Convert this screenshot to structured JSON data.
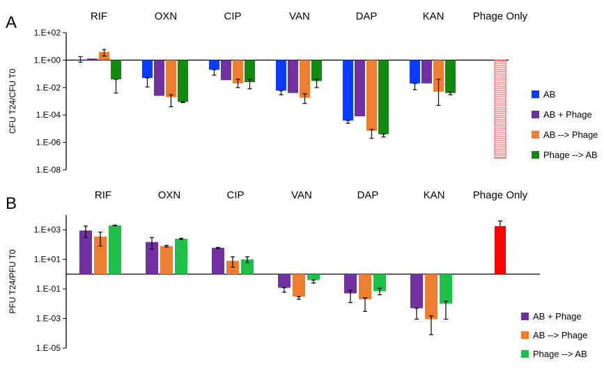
{
  "colors": {
    "AB": "#0a3cff",
    "AB + Phage": "#7030a0",
    "AB --> Phage": "#ed7d31",
    "Phage --> AB": "#0f8a0f",
    "Phage --> AB (B)": "#1fbf4a",
    "Phage Only A": "#ff4d4d",
    "Phage Only B": "#ff0000",
    "axis": "#000000",
    "errorbar": "#000000"
  },
  "chart_data": [
    {
      "panel": "A",
      "type": "bar",
      "log_scale": true,
      "ylabel": "CFU T24/CFU T0",
      "ylim": [
        1e-08,
        100
      ],
      "baseline": 1,
      "yticks": [
        {
          "value": 100,
          "label": "1.E+02"
        },
        {
          "value": 1,
          "label": "1.E+00"
        },
        {
          "value": 0.01,
          "label": "1.E-02"
        },
        {
          "value": 0.0001,
          "label": "1.E-04"
        },
        {
          "value": 1e-06,
          "label": "1.E-06"
        },
        {
          "value": 1e-08,
          "label": "1.E-08"
        }
      ],
      "categories": [
        "RIF",
        "OXN",
        "CIP",
        "VAN",
        "DAP",
        "KAN",
        "Phage Only"
      ],
      "legend": [
        "AB",
        "AB + Phage",
        "AB --> Phage",
        "Phage --> AB"
      ],
      "legend_position": "right",
      "series": [
        {
          "name": "AB",
          "values": [
            1.1,
            0.05,
            0.2,
            0.006,
            4e-05,
            0.02,
            null
          ],
          "err_low": [
            0.7,
            0.011,
            0.08,
            0.003,
            2.5e-05,
            0.007,
            null
          ],
          "err_high": [
            1.8,
            0.05,
            0.2,
            0.006,
            4e-05,
            0.02,
            null
          ]
        },
        {
          "name": "AB + Phage",
          "values": [
            1.3,
            0.0025,
            0.035,
            0.004,
            8e-05,
            0.02,
            null
          ],
          "err_low": [
            1.3,
            0.0025,
            0.035,
            0.004,
            8e-05,
            0.02,
            null
          ],
          "err_high": [
            1.3,
            0.0025,
            0.035,
            0.004,
            8e-05,
            0.02,
            null
          ]
        },
        {
          "name": "AB --> Phage",
          "values": [
            4,
            0.002,
            0.02,
            0.0018,
            7e-06,
            0.005,
            null
          ],
          "err_low": [
            2,
            0.0004,
            0.01,
            0.0007,
            2e-06,
            0.0005,
            null
          ],
          "err_high": [
            6,
            0.003,
            0.04,
            0.0035,
            9e-06,
            0.04,
            null
          ]
        },
        {
          "name": "Phage --> AB",
          "values": [
            0.04,
            0.0009,
            0.025,
            0.03,
            4e-06,
            0.004,
            null
          ],
          "err_low": [
            0.004,
            0.0008,
            0.008,
            0.01,
            2.5e-06,
            0.003,
            null
          ],
          "err_high": [
            0.04,
            0.0009,
            0.04,
            0.04,
            4e-06,
            0.005,
            null
          ]
        },
        {
          "name": "Phage Only",
          "values": [
            null,
            null,
            null,
            null,
            null,
            null,
            7e-08
          ]
        }
      ]
    },
    {
      "panel": "B",
      "type": "bar",
      "log_scale": true,
      "ylabel": "PFU T24/PFU T0",
      "ylim": [
        1e-05,
        10000
      ],
      "baseline": 1,
      "yticks": [
        {
          "value": 1000,
          "label": "1.E+03"
        },
        {
          "value": 10,
          "label": "1.E+01"
        },
        {
          "value": 0.1,
          "label": "1.E-01"
        },
        {
          "value": 0.001,
          "label": "1.E-03"
        },
        {
          "value": 1e-05,
          "label": "1.E-05"
        }
      ],
      "categories": [
        "RIF",
        "OXN",
        "CIP",
        "VAN",
        "DAP",
        "KAN",
        "Phage Only"
      ],
      "legend": [
        "AB + Phage",
        "AB --> Phage",
        "Phage --> AB"
      ],
      "legend_position": "right",
      "series": [
        {
          "name": "AB + Phage",
          "values": [
            900,
            150,
            60,
            0.12,
            0.05,
            0.005,
            null
          ],
          "err_low": [
            300,
            50,
            55,
            0.06,
            0.012,
            0.0009,
            null
          ],
          "err_high": [
            1800,
            300,
            65,
            0.12,
            0.08,
            0.005,
            null
          ]
        },
        {
          "name": "AB --> Phage",
          "values": [
            350,
            80,
            8,
            0.03,
            0.02,
            0.0009,
            null
          ],
          "err_low": [
            80,
            70,
            3,
            0.02,
            0.003,
            8e-05,
            null
          ],
          "err_high": [
            700,
            90,
            15,
            0.03,
            0.025,
            0.0015,
            null
          ]
        },
        {
          "name": "Phage --> AB",
          "values": [
            2000,
            250,
            10,
            0.4,
            0.07,
            0.01,
            null
          ],
          "err_low": [
            1900,
            230,
            6,
            0.25,
            0.04,
            0.0009,
            null
          ],
          "err_high": [
            2100,
            270,
            15,
            0.4,
            0.11,
            0.015,
            null
          ]
        },
        {
          "name": "Phage Only",
          "values": [
            null,
            null,
            null,
            null,
            null,
            null,
            1800
          ],
          "err_low": [
            null,
            null,
            null,
            null,
            null,
            null,
            1800
          ],
          "err_high": [
            null,
            null,
            null,
            null,
            null,
            null,
            4000
          ]
        }
      ]
    }
  ],
  "panels": {
    "A": {
      "letter": "A"
    },
    "B": {
      "letter": "B"
    }
  }
}
